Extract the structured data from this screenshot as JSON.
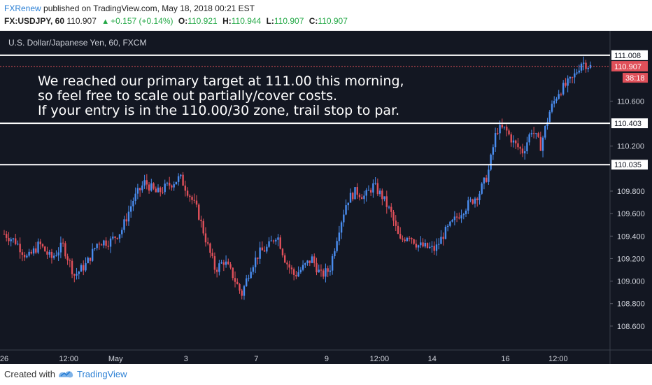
{
  "header": {
    "author": "FXRenew",
    "published_text": "published on TradingView.com, May 18, 2018 00:21 EST",
    "symbol": "FX:USDJPY, 60",
    "last": "110.907",
    "change": "+0.157 (+0.14%)",
    "open_label": "O:",
    "open": "110.921",
    "high_label": "H:",
    "high": "110.944",
    "low_label": "L:",
    "low": "110.907",
    "close_label": "C:",
    "close": "110.907"
  },
  "colors": {
    "background": "#131722",
    "up": "#4a8df0",
    "down": "#e0505a",
    "level_line": "#ffffff",
    "price_tag": "#e0505a",
    "axis_text": "#d1d4dc"
  },
  "chart_data": {
    "type": "candlestick",
    "title": "U.S. Dollar/Japanese Yen, 60, FXCM",
    "annotation": [
      "We reached our primary target at 111.00 this morning,",
      "so feel free to scale out partially/cover costs.",
      "If your entry is in the 110.00/30 zone, trail stop to par."
    ],
    "ylim": [
      108.4,
      111.2
    ],
    "y_ticks": [
      "108.600",
      "108.800",
      "109.000",
      "109.200",
      "109.400",
      "109.600",
      "109.800",
      "110.200",
      "110.600"
    ],
    "x_ticks": [
      {
        "label": "26",
        "pos": 0.0
      },
      {
        "label": "12:00",
        "pos": 0.11
      },
      {
        "label": "May",
        "pos": 0.19
      },
      {
        "label": "3",
        "pos": 0.31
      },
      {
        "label": "7",
        "pos": 0.43
      },
      {
        "label": "9",
        "pos": 0.55
      },
      {
        "label": "12:00",
        "pos": 0.64
      },
      {
        "label": "14",
        "pos": 0.73
      },
      {
        "label": "16",
        "pos": 0.855
      },
      {
        "label": "12:00",
        "pos": 0.945
      }
    ],
    "levels": [
      {
        "value": 111.008,
        "label": "111.008"
      },
      {
        "value": 110.403,
        "label": "110.403"
      },
      {
        "value": 110.035,
        "label": "110.035"
      }
    ],
    "current_price": {
      "value": 110.907,
      "label": "110.907",
      "countdown": "38:18"
    },
    "path": [
      [
        0,
        109.42
      ],
      [
        0.02,
        109.35
      ],
      [
        0.04,
        109.2
      ],
      [
        0.06,
        109.33
      ],
      [
        0.08,
        109.2
      ],
      [
        0.1,
        109.32
      ],
      [
        0.12,
        109.05
      ],
      [
        0.14,
        109.15
      ],
      [
        0.16,
        109.35
      ],
      [
        0.18,
        109.35
      ],
      [
        0.2,
        109.45
      ],
      [
        0.22,
        109.72
      ],
      [
        0.24,
        109.88
      ],
      [
        0.26,
        109.78
      ],
      [
        0.28,
        109.85
      ],
      [
        0.3,
        109.92
      ],
      [
        0.315,
        109.78
      ],
      [
        0.33,
        109.62
      ],
      [
        0.345,
        109.35
      ],
      [
        0.36,
        109.1
      ],
      [
        0.375,
        109.18
      ],
      [
        0.39,
        109.05
      ],
      [
        0.405,
        108.88
      ],
      [
        0.42,
        109.12
      ],
      [
        0.435,
        109.25
      ],
      [
        0.45,
        109.3
      ],
      [
        0.465,
        109.42
      ],
      [
        0.48,
        109.18
      ],
      [
        0.495,
        109.05
      ],
      [
        0.51,
        109.12
      ],
      [
        0.525,
        109.2
      ],
      [
        0.54,
        109.05
      ],
      [
        0.555,
        109.1
      ],
      [
        0.57,
        109.45
      ],
      [
        0.585,
        109.72
      ],
      [
        0.6,
        109.8
      ],
      [
        0.615,
        109.75
      ],
      [
        0.63,
        109.85
      ],
      [
        0.645,
        109.75
      ],
      [
        0.66,
        109.6
      ],
      [
        0.675,
        109.35
      ],
      [
        0.69,
        109.42
      ],
      [
        0.705,
        109.32
      ],
      [
        0.72,
        109.3
      ],
      [
        0.735,
        109.28
      ],
      [
        0.75,
        109.42
      ],
      [
        0.765,
        109.52
      ],
      [
        0.78,
        109.62
      ],
      [
        0.795,
        109.7
      ],
      [
        0.81,
        109.78
      ],
      [
        0.825,
        109.95
      ],
      [
        0.84,
        110.35
      ],
      [
        0.855,
        110.35
      ],
      [
        0.87,
        110.22
      ],
      [
        0.885,
        110.15
      ],
      [
        0.9,
        110.35
      ],
      [
        0.915,
        110.2
      ],
      [
        0.93,
        110.5
      ],
      [
        0.945,
        110.68
      ],
      [
        0.96,
        110.75
      ],
      [
        0.97,
        110.8
      ],
      [
        0.985,
        110.95
      ],
      [
        1.0,
        110.907
      ]
    ]
  }
}
